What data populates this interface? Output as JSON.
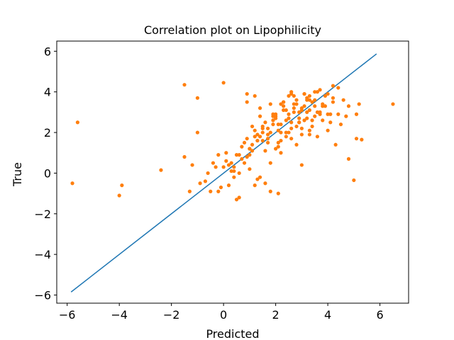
{
  "chart_data": {
    "type": "scatter",
    "title": "Correlation plot on Lipophilicity",
    "xlabel": "Predicted",
    "ylabel": "True",
    "xlim": [
      -6.4,
      7.1
    ],
    "ylim": [
      -6.4,
      6.5
    ],
    "xticks": [
      -6,
      -4,
      -2,
      0,
      2,
      4,
      6
    ],
    "yticks": [
      -6,
      -4,
      -2,
      0,
      2,
      4,
      6
    ],
    "xtick_labels": [
      "−6",
      "−4",
      "−2",
      "0",
      "2",
      "4",
      "6"
    ],
    "ytick_labels": [
      "−6",
      "−4",
      "−2",
      "0",
      "2",
      "4",
      "6"
    ],
    "grid": false,
    "colors": {
      "line": "#1f77b4",
      "points": "#ff7f0e"
    },
    "line": {
      "x": [
        -5.85,
        5.87
      ],
      "y": [
        -5.85,
        5.87
      ]
    },
    "points": {
      "x": [
        -5.8,
        -5.6,
        -3.9,
        -4.0,
        -2.4,
        -1.5,
        -1.5,
        -1.3,
        -1.0,
        -1.0,
        -0.7,
        -0.5,
        -0.3,
        -0.1,
        0.0,
        0.1,
        0.2,
        0.3,
        0.4,
        0.5,
        0.6,
        0.7,
        0.8,
        0.9,
        1.0,
        1.1,
        1.2,
        1.3,
        1.3,
        1.4,
        1.5,
        1.6,
        1.7,
        1.8,
        1.9,
        2.0,
        2.1,
        2.2,
        2.3,
        2.4,
        2.5,
        2.6,
        2.7,
        2.8,
        2.9,
        3.0,
        3.1,
        3.2,
        3.3,
        3.4,
        3.5,
        3.6,
        3.7,
        3.8,
        3.9,
        4.0,
        4.1,
        4.2,
        4.3,
        4.4,
        4.5,
        4.6,
        4.7,
        4.8,
        5.0,
        5.1,
        5.2,
        5.3,
        6.5,
        -1.2,
        -0.9,
        -0.6,
        -0.4,
        -0.2,
        0.0,
        0.2,
        0.4,
        0.6,
        0.8,
        1.0,
        1.2,
        1.4,
        1.6,
        1.8,
        2.0,
        2.2,
        2.4,
        2.6,
        2.8,
        3.0,
        3.2,
        3.4,
        3.6,
        3.8,
        4.0,
        4.2,
        4.4,
        1.1,
        1.3,
        1.5,
        1.7,
        1.9,
        2.1,
        2.3,
        2.5,
        2.7,
        2.9,
        3.1,
        3.3,
        3.5,
        3.7,
        3.9,
        4.1,
        0.9,
        1.1,
        1.3,
        1.5,
        1.7,
        1.9,
        2.1,
        2.3,
        2.5,
        2.7,
        2.9,
        3.1,
        3.3,
        3.5,
        3.7,
        1.0,
        1.2,
        1.4,
        1.6,
        1.8,
        2.0,
        2.2,
        2.4,
        2.6,
        2.8,
        3.0,
        3.2,
        3.4,
        3.6,
        3.8,
        4.0,
        1.5,
        1.7,
        1.9,
        2.1,
        2.3,
        2.5,
        2.7,
        2.9,
        3.1,
        3.3,
        3.5,
        2.0,
        2.2,
        2.4,
        2.6,
        2.8,
        3.0,
        3.2,
        0.3,
        0.5,
        0.7,
        0.9,
        -0.2,
        0.1,
        0.6,
        1.0,
        1.8,
        2.1,
        0.9,
        1.4,
        2.6,
        3.3,
        4.2,
        4.8,
        5.1,
        0.4,
        1.2,
        2.2,
        3.0
      ],
      "y": [
        -0.5,
        2.5,
        -0.6,
        -1.1,
        0.15,
        4.35,
        0.8,
        -0.9,
        3.7,
        2.0,
        -0.4,
        -0.9,
        0.3,
        -0.7,
        4.45,
        1.0,
        -0.6,
        0.1,
        0.3,
        -1.3,
        -1.2,
        0.7,
        0.5,
        3.9,
        1.2,
        2.3,
        3.8,
        1.6,
        -0.3,
        2.8,
        2.2,
        -0.5,
        1.9,
        3.4,
        2.4,
        2.9,
        1.3,
        2.0,
        3.3,
        2.6,
        3.8,
        2.2,
        3.0,
        3.6,
        2.5,
        3.2,
        3.9,
        2.7,
        1.9,
        3.5,
        2.8,
        3.0,
        4.1,
        2.6,
        3.3,
        3.9,
        2.9,
        3.5,
        1.4,
        4.2,
        2.4,
        3.6,
        2.8,
        0.7,
        -0.35,
        1.7,
        3.4,
        1.65,
        3.4,
        0.4,
        -0.5,
        0.0,
        0.5,
        0.9,
        0.3,
        0.4,
        0.1,
        0.9,
        1.5,
        0.2,
        1.8,
        -0.2,
        1.1,
        0.5,
        1.2,
        1.6,
        2.0,
        2.5,
        1.4,
        1.9,
        3.0,
        2.3,
        1.8,
        3.4,
        2.1,
        3.7,
        2.9,
        1.1,
        1.6,
        2.0,
        1.7,
        2.8,
        2.4,
        3.1,
        2.7,
        3.4,
        3.0,
        2.6,
        3.6,
        3.3,
        2.9,
        3.8,
        2.5,
        0.8,
        1.4,
        1.9,
        2.3,
        1.5,
        2.6,
        2.1,
        3.5,
        2.9,
        3.2,
        2.7,
        3.9,
        3.1,
        3.6,
        3.0,
        1.2,
        2.1,
        1.8,
        2.5,
        2.0,
        2.8,
        2.4,
        3.1,
        1.7,
        3.4,
        2.2,
        3.7,
        2.6,
        4.0,
        3.3,
        2.9,
        1.6,
        2.2,
        2.9,
        1.5,
        3.5,
        2.0,
        3.8,
        2.5,
        3.3,
        2.1,
        4.0,
        2.7,
        3.4,
        1.8,
        3.9,
        2.3,
        3.1,
        3.6,
        0.5,
        0.9,
        1.3,
        1.7,
        -0.9,
        0.6,
        0.0,
        0.9,
        -0.9,
        -1.0,
        3.5,
        3.2,
        4.0,
        3.8,
        4.3,
        3.3,
        2.9,
        -0.2,
        -0.6,
        1.0,
        0.4
      ]
    }
  }
}
